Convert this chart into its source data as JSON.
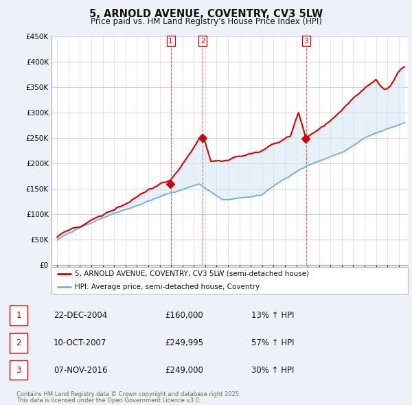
{
  "title": "5, ARNOLD AVENUE, COVENTRY, CV3 5LW",
  "subtitle": "Price paid vs. HM Land Registry's House Price Index (HPI)",
  "background_color": "#eef2f8",
  "plot_bg_color": "#ffffff",
  "ylim": [
    0,
    450000
  ],
  "yticks": [
    0,
    50000,
    100000,
    150000,
    200000,
    250000,
    300000,
    350000,
    400000,
    450000
  ],
  "transactions": [
    {
      "num": 1,
      "date_str": "22-DEC-2004",
      "year": 2004.97,
      "price": 160000,
      "price_str": "£160,000",
      "pct": "13% ↑ HPI"
    },
    {
      "num": 2,
      "date_str": "10-OCT-2007",
      "year": 2007.78,
      "price": 249995,
      "price_str": "£249,995",
      "pct": "57% ↑ HPI"
    },
    {
      "num": 3,
      "date_str": "07-NOV-2016",
      "year": 2016.85,
      "price": 249000,
      "price_str": "£249,000",
      "pct": "30% ↑ HPI"
    }
  ],
  "legend_line1": "5, ARNOLD AVENUE, COVENTRY, CV3 5LW (semi-detached house)",
  "legend_line2": "HPI: Average price, semi-detached house, Coventry",
  "footer": "Contains HM Land Registry data © Crown copyright and database right 2025.\nThis data is licensed under the Open Government Licence v3.0.",
  "red_color": "#cc0000",
  "blue_color": "#7ab0d4",
  "shade_color": "#d0e4f4",
  "shade_alpha": 0.5,
  "vline_color": "#cc0000",
  "grid_color": "#cccccc",
  "years_start": 1995,
  "years_end": 2025,
  "xlim_left": 1994.5,
  "xlim_right": 2025.8
}
